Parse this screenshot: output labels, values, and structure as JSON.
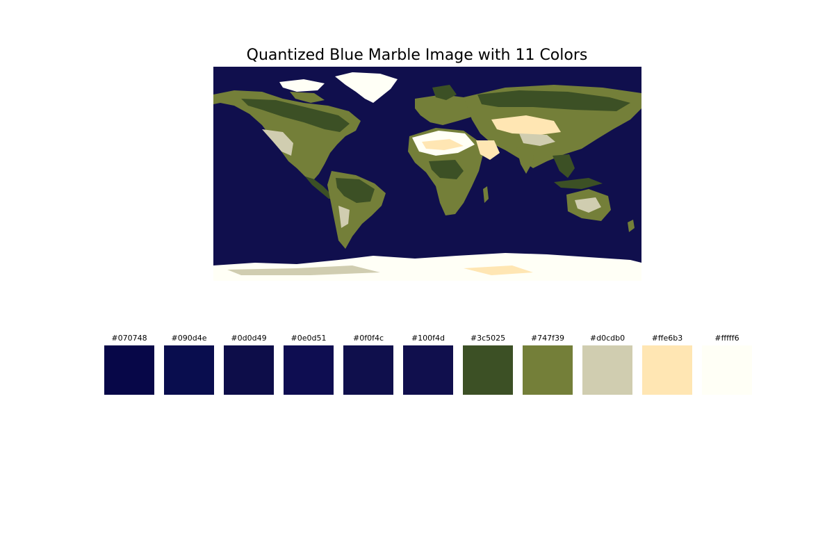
{
  "figure": {
    "title": "Quantized Blue Marble Image with 11 Colors"
  },
  "map": {
    "ocean_color": "#100f4d",
    "land_forest_color": "#3c5025",
    "land_green_color": "#747f39",
    "land_tan_color": "#d0cdb0",
    "desert_color": "#ffe6b3",
    "ice_color": "#fffff6"
  },
  "palette": {
    "colors": [
      {
        "label": "#070748",
        "hex": "#070748"
      },
      {
        "label": "#090d4e",
        "hex": "#090d4e"
      },
      {
        "label": "#0d0d49",
        "hex": "#0d0d49"
      },
      {
        "label": "#0e0d51",
        "hex": "#0e0d51"
      },
      {
        "label": "#0f0f4c",
        "hex": "#0f0f4c"
      },
      {
        "label": "#100f4d",
        "hex": "#100f4d"
      },
      {
        "label": "#3c5025",
        "hex": "#3c5025"
      },
      {
        "label": "#747f39",
        "hex": "#747f39"
      },
      {
        "label": "#d0cdb0",
        "hex": "#d0cdb0"
      },
      {
        "label": "#ffe6b3",
        "hex": "#ffe6b3"
      },
      {
        "label": "#fffff6",
        "hex": "#fffff6"
      }
    ]
  }
}
